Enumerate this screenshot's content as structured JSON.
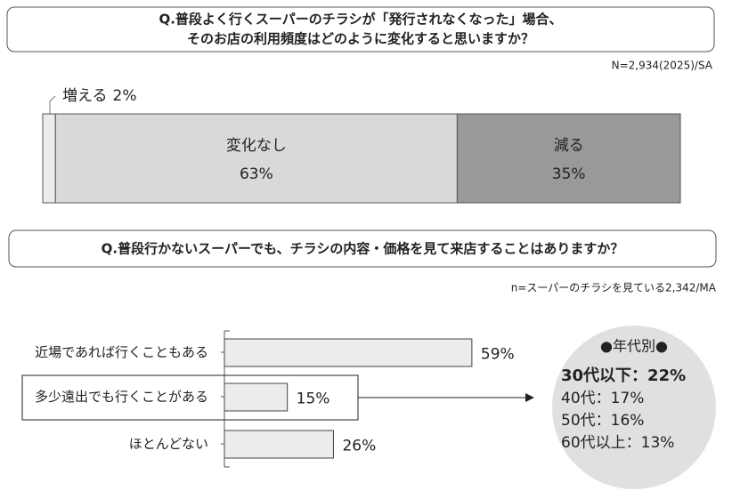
{
  "chart_data": [
    {
      "type": "stacked_bar",
      "title": [
        "Q.普段よく行くスーパーのチラシが「発行されなくなった」場合、",
        "そのお店の利用頻度はどのように変化すると思いますか？"
      ],
      "note": "N=2,934(2025)/SA",
      "series": [
        {
          "name": "増える",
          "color": "#ececec",
          "values": [
            2
          ],
          "value_labels": [
            "2%"
          ]
        },
        {
          "name": "変化なし",
          "color": "#d9d9d9",
          "values": [
            63
          ],
          "value_labels": [
            "63%"
          ]
        },
        {
          "name": "減る",
          "color": "#999999",
          "values": [
            35
          ],
          "value_labels": [
            "35%"
          ]
        }
      ]
    },
    {
      "type": "hbar",
      "title": "Q.普段行かないスーパーでも、チラシの内容・価格を見て来店することはありますか？",
      "note": "n=スーパーのチラシを見ている2,342/MA",
      "categories": [
        "近場であれば行くこともある",
        "多少遠出でも行くことがある",
        "ほとんどない"
      ],
      "values": [
        59,
        15,
        26
      ],
      "value_labels": [
        "59%",
        "15%",
        "26%"
      ],
      "color": "#ececec",
      "callout": {
        "title": "●年代別●",
        "items": [
          "30代以下：22%",
          "40代：17%",
          "50代：16%",
          "60代以上：13%"
        ]
      }
    }
  ]
}
